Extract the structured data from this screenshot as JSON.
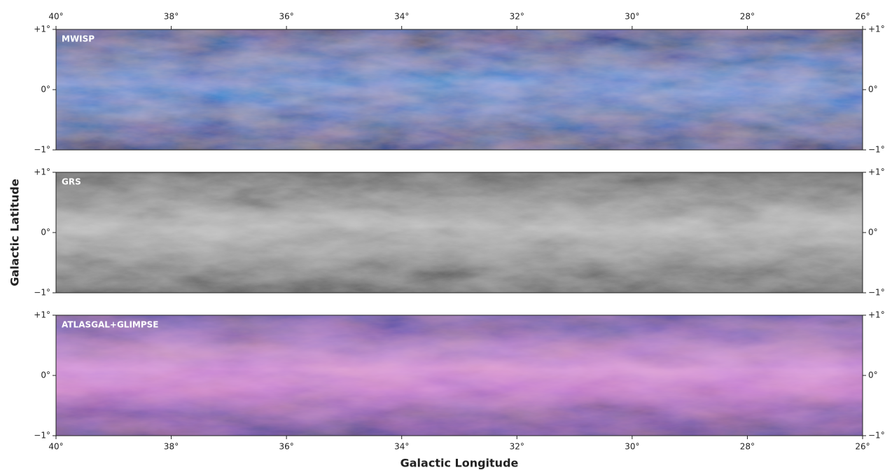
{
  "chart_data": [
    {
      "type": "image",
      "label": "MWISP",
      "xlim": [
        40,
        26
      ],
      "ylim": [
        -1,
        1
      ],
      "xticks": [
        {
          "value": 40,
          "label": "40°"
        },
        {
          "value": 38,
          "label": "38°"
        },
        {
          "value": 36,
          "label": "36°"
        },
        {
          "value": 34,
          "label": "34°"
        },
        {
          "value": 32,
          "label": "32°"
        },
        {
          "value": 30,
          "label": "30°"
        },
        {
          "value": 28,
          "label": "28°"
        },
        {
          "value": 26,
          "label": "26°"
        }
      ],
      "yticks": [
        {
          "value": 1,
          "label": "+1°"
        },
        {
          "value": 0,
          "label": "0°"
        },
        {
          "value": -1,
          "label": "−1°"
        }
      ]
    },
    {
      "type": "image",
      "label": "GRS",
      "xlim": [
        40,
        26
      ],
      "ylim": [
        -1,
        1
      ],
      "yticks": [
        {
          "value": 1,
          "label": "+1°"
        },
        {
          "value": 0,
          "label": "0°"
        },
        {
          "value": -1,
          "label": "−1°"
        }
      ],
      "ylabel": "Galactic Latitude"
    },
    {
      "type": "image",
      "label": "ATLASGAL+GLIMPSE",
      "xlim": [
        40,
        26
      ],
      "ylim": [
        -1,
        1
      ],
      "xticks": [
        {
          "value": 40,
          "label": "40°"
        },
        {
          "value": 38,
          "label": "38°"
        },
        {
          "value": 36,
          "label": "36°"
        },
        {
          "value": 34,
          "label": "34°"
        },
        {
          "value": 32,
          "label": "32°"
        },
        {
          "value": 30,
          "label": "30°"
        },
        {
          "value": 28,
          "label": "28°"
        },
        {
          "value": 26,
          "label": "26°"
        }
      ],
      "yticks": [
        {
          "value": 1,
          "label": "+1°"
        },
        {
          "value": 0,
          "label": "0°"
        },
        {
          "value": -1,
          "label": "−1°"
        }
      ],
      "xlabel": "Galactic Longitude"
    }
  ]
}
